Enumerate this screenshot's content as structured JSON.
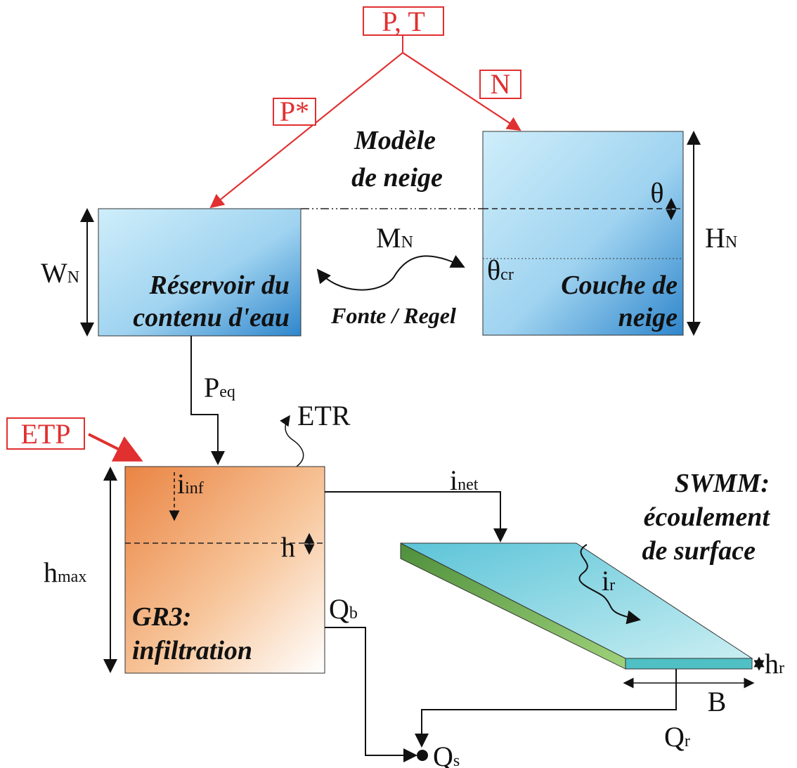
{
  "inputs": {
    "pt": "P, T",
    "p_star": "P*",
    "n": "N",
    "etp": "ETP"
  },
  "snow_model": {
    "title_line1": "Modèle",
    "title_line2": "de neige",
    "reservoir": {
      "line1": "Réservoir du",
      "line2": "contenu d'eau"
    },
    "layer": {
      "line1": "Couche de",
      "line2": "neige"
    },
    "wn": {
      "symbol": "W",
      "sub": "N"
    },
    "hn": {
      "symbol": "H",
      "sub": "N"
    },
    "mn": {
      "symbol": "M",
      "sub": "N"
    },
    "theta": "θ",
    "theta_cr": {
      "symbol": "θ",
      "sub": "cr"
    },
    "exchange": "Fonte / Regel"
  },
  "flows": {
    "peq": {
      "symbol": "P",
      "sub": "eq"
    },
    "etr": "ETR",
    "inet": {
      "symbol": "i",
      "sub": "net"
    },
    "iinf": {
      "symbol": "i",
      "sub": "inf"
    },
    "h": "h",
    "hmax": {
      "symbol": "h",
      "sub": "max"
    },
    "qb": {
      "symbol": "Q",
      "sub": "b"
    },
    "qr": {
      "symbol": "Q",
      "sub": "r"
    },
    "qs": {
      "symbol": "Q",
      "sub": "s"
    },
    "ir": {
      "symbol": "i",
      "sub": "r"
    },
    "hr": {
      "symbol": "h",
      "sub": "r"
    },
    "b": "B"
  },
  "gr3": {
    "line1": "GR3:",
    "line2": "infiltration"
  },
  "swmm": {
    "line1": "SWMM:",
    "line2": "écoulement",
    "line3": "de surface"
  }
}
